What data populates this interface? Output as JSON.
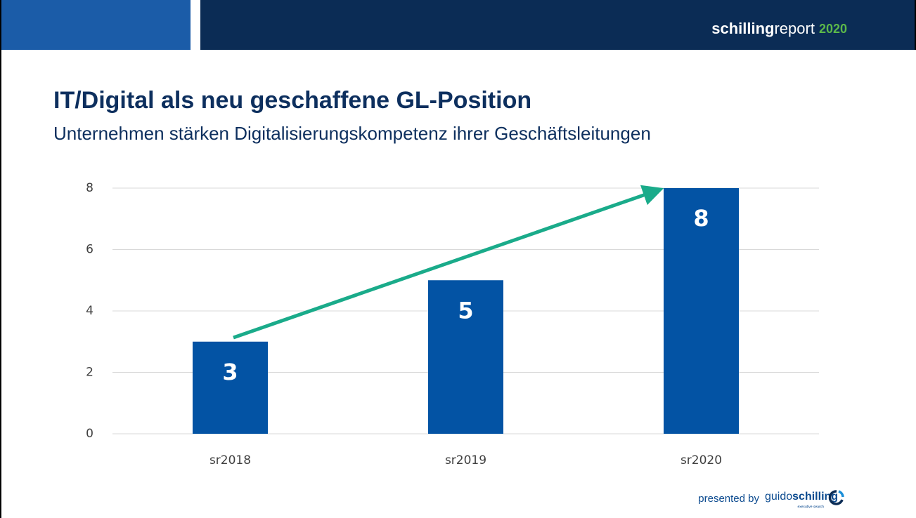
{
  "header": {
    "brand_bold": "schilling",
    "brand_light": "report",
    "brand_year": "2020"
  },
  "footer": {
    "presented": "presented by",
    "logo_light": "guido",
    "logo_bold": "schilling",
    "logo_sub": "executive search"
  },
  "chart_data": {
    "type": "bar",
    "title": "IT/Digital als neu geschaffene GL-Position",
    "subtitle": "Unternehmen stärken Digitalisierungskompetenz ihrer Geschäftsleitungen",
    "categories": [
      "sr2018",
      "sr2019",
      "sr2020"
    ],
    "values": [
      3,
      5,
      8
    ],
    "color": "#0353a4",
    "ylim": [
      0,
      8
    ],
    "yticks": [
      0,
      2,
      4,
      6,
      8
    ],
    "grid": true
  }
}
